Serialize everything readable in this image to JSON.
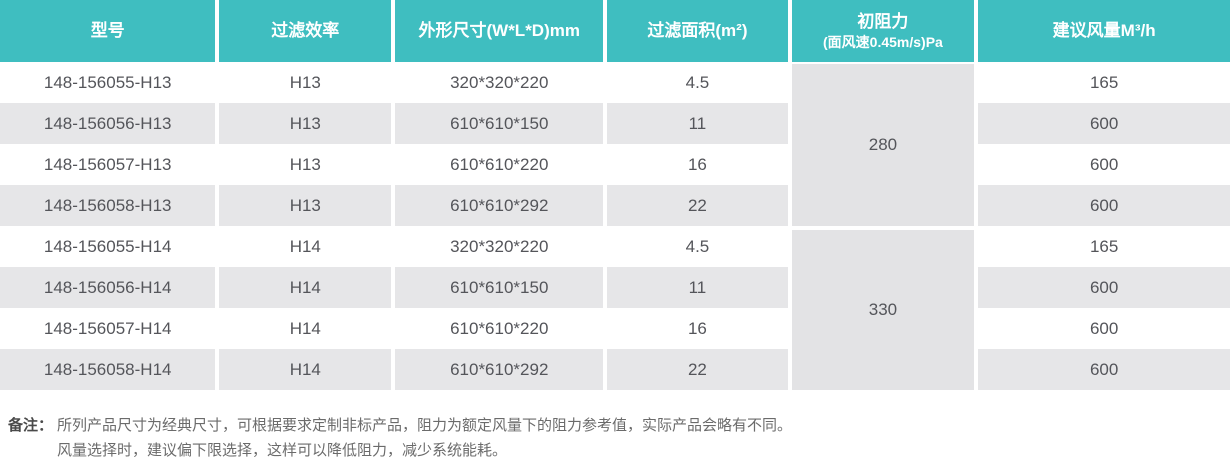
{
  "table": {
    "headers": [
      {
        "label": "型号"
      },
      {
        "label": "过滤效率"
      },
      {
        "label": "外形尺寸(W*L*D)mm"
      },
      {
        "label": "过滤面积(m²)"
      },
      {
        "label": "初阻力",
        "subline": "(面风速0.45m/s)Pa"
      },
      {
        "label": "建议风量M³/h"
      }
    ],
    "groups": [
      {
        "initial_resistance": "280",
        "rows": [
          {
            "model": "148-156055-H13",
            "efficiency": "H13",
            "dimensions": "320*320*220",
            "area": "4.5",
            "airflow": "165"
          },
          {
            "model": "148-156056-H13",
            "efficiency": "H13",
            "dimensions": "610*610*150",
            "area": "11",
            "airflow": "600"
          },
          {
            "model": "148-156057-H13",
            "efficiency": "H13",
            "dimensions": "610*610*220",
            "area": "16",
            "airflow": "600"
          },
          {
            "model": "148-156058-H13",
            "efficiency": "H13",
            "dimensions": "610*610*292",
            "area": "22",
            "airflow": "600"
          }
        ]
      },
      {
        "initial_resistance": "330",
        "rows": [
          {
            "model": "148-156055-H14",
            "efficiency": "H14",
            "dimensions": "320*320*220",
            "area": "4.5",
            "airflow": "165"
          },
          {
            "model": "148-156056-H14",
            "efficiency": "H14",
            "dimensions": "610*610*150",
            "area": "11",
            "airflow": "600"
          },
          {
            "model": "148-156057-H14",
            "efficiency": "H14",
            "dimensions": "610*610*220",
            "area": "16",
            "airflow": "600"
          },
          {
            "model": "148-156058-H14",
            "efficiency": "H14",
            "dimensions": "610*610*292",
            "area": "22",
            "airflow": "600"
          }
        ]
      }
    ]
  },
  "notes": {
    "label": "备注：",
    "line1": "所列产品尺寸为经典尺寸，可根据要求定制非标产品，阻力为额定风量下的阻力参考值，实际产品会略有不同。",
    "line2": "风量选择时，建议偏下限选择，这样可以降低阻力，减少系统能耗。"
  },
  "colors": {
    "header_teal": "#3FBEC0",
    "row_alt": "#E6E6E8",
    "merged_cell": "#E3E3E5",
    "cell_text": "#54555A"
  }
}
